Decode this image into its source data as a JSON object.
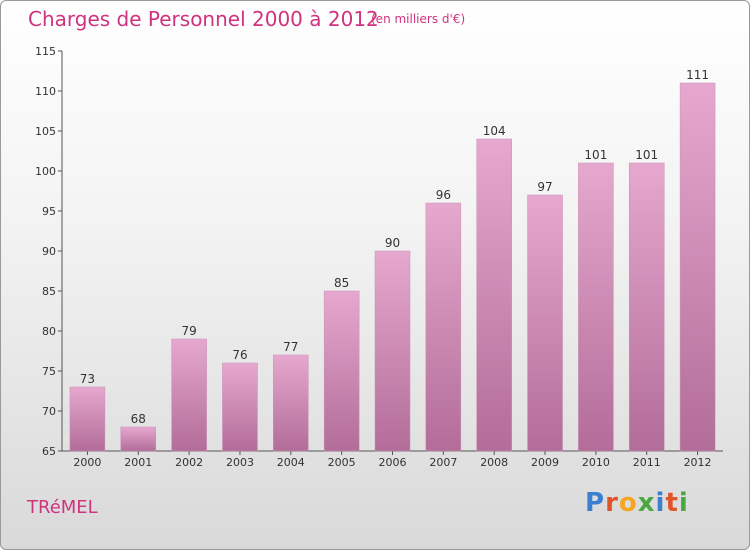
{
  "header": {
    "title": "Charges de Personnel 2000 à 2012",
    "subtitle": "(en milliers d'€)"
  },
  "footer": {
    "town": "TRéMEL",
    "logo_letters": [
      "P",
      "r",
      "o",
      "x",
      "i",
      "t",
      "i"
    ],
    "logo_colors": [
      "#3a7fd0",
      "#e0542a",
      "#f4a623",
      "#49a842",
      "#3a7fd0",
      "#e0542a",
      "#49a842"
    ]
  },
  "colors": {
    "bar_top": "#e6a8cf",
    "bar_bottom": "#b26d98",
    "accent": "#d0337e"
  },
  "chart_data": {
    "type": "bar",
    "title": "Charges de Personnel 2000 à 2012",
    "subtitle": "(en milliers d'€)",
    "categories": [
      "2000",
      "2001",
      "2002",
      "2003",
      "2004",
      "2005",
      "2006",
      "2007",
      "2008",
      "2009",
      "2010",
      "2011",
      "2012"
    ],
    "values": [
      73,
      68,
      79,
      76,
      77,
      85,
      90,
      96,
      104,
      97,
      101,
      101,
      111
    ],
    "ylim": [
      65,
      115
    ],
    "yticks": [
      65,
      70,
      75,
      80,
      85,
      90,
      95,
      100,
      105,
      110,
      115
    ],
    "grid": false,
    "xlabel": "",
    "ylabel": ""
  }
}
